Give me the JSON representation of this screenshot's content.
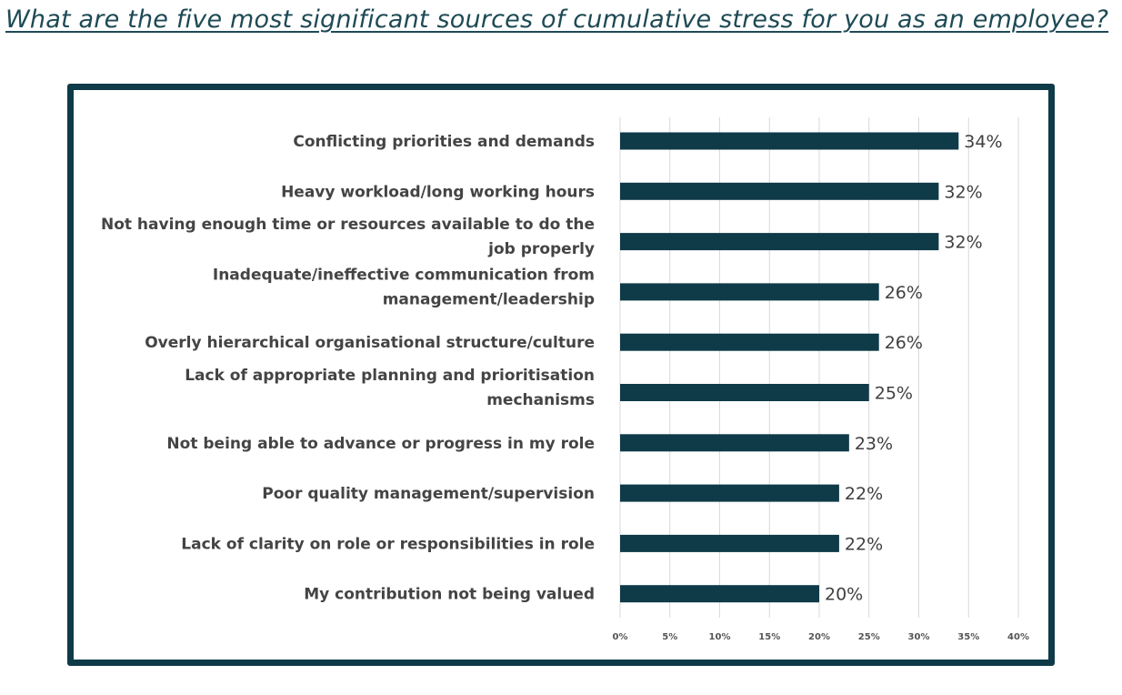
{
  "title": "What are the five most significant sources of cumulative stress for you as an employee?",
  "chart_data": {
    "type": "bar",
    "orientation": "horizontal",
    "categories": [
      "Conflicting priorities and demands",
      "Heavy workload/long working hours",
      "Not having enough time or resources available to do the job properly",
      "Inadequate/ineffective communication from management/leadership",
      "Overly hierarchical organisational structure/culture",
      "Lack of appropriate planning and prioritisation mechanisms",
      "Not being able to advance or progress in my role",
      "Poor quality management/supervision",
      "Lack of clarity on role or responsibilities in role",
      "My contribution not being valued"
    ],
    "category_lines": [
      [
        "Conflicting priorities and demands"
      ],
      [
        "Heavy workload/long working hours"
      ],
      [
        "Not having enough time or resources available to do the",
        "job properly"
      ],
      [
        "Inadequate/ineffective communication from",
        "management/leadership"
      ],
      [
        "Overly hierarchical organisational structure/culture"
      ],
      [
        "Lack of appropriate planning and prioritisation",
        "mechanisms"
      ],
      [
        "Not being able to advance or progress in my role"
      ],
      [
        "Poor quality management/supervision"
      ],
      [
        "Lack of clarity on role or responsibilities in role"
      ],
      [
        "My contribution not being valued"
      ]
    ],
    "values": [
      34,
      32,
      32,
      26,
      26,
      25,
      23,
      22,
      22,
      20
    ],
    "value_labels": [
      "34%",
      "32%",
      "32%",
      "26%",
      "26%",
      "25%",
      "23%",
      "22%",
      "22%",
      "20%"
    ],
    "x_ticks": [
      "0%",
      "5%",
      "10%",
      "15%",
      "20%",
      "25%",
      "30%",
      "35%",
      "40%"
    ],
    "xlim": [
      0,
      40
    ],
    "grid": true,
    "bar_color": "#0f3a48"
  }
}
